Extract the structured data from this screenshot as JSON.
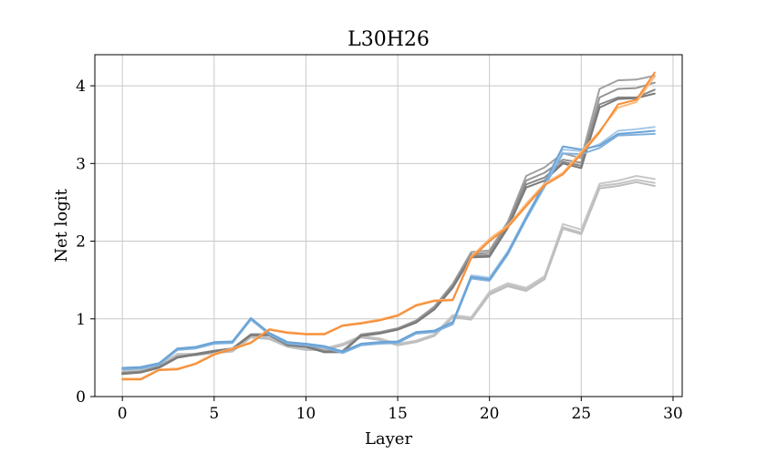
{
  "chart_data": {
    "type": "line",
    "title": "L30H26",
    "xlabel": "Layer",
    "ylabel": "Net logit",
    "xlim": [
      -1.5,
      30.5
    ],
    "ylim": [
      0,
      4.4
    ],
    "xticks": [
      0,
      5,
      10,
      15,
      20,
      25,
      30
    ],
    "yticks": [
      0,
      1,
      2,
      3,
      4
    ],
    "grid": true,
    "x": [
      0,
      1,
      2,
      3,
      4,
      5,
      6,
      7,
      8,
      9,
      10,
      11,
      12,
      13,
      14,
      15,
      16,
      17,
      18,
      19,
      20,
      21,
      22,
      23,
      24,
      25,
      26,
      27,
      28,
      29
    ],
    "series": [
      {
        "color": "#c8c8c8",
        "values": [
          0.33,
          0.34,
          0.4,
          0.55,
          0.55,
          0.58,
          0.6,
          0.78,
          0.76,
          0.66,
          0.62,
          0.62,
          0.68,
          0.78,
          0.75,
          0.68,
          0.72,
          0.8,
          1.05,
          1.02,
          1.35,
          1.46,
          1.4,
          1.55,
          2.22,
          2.15,
          2.74,
          2.78,
          2.84,
          2.8
        ]
      },
      {
        "color": "#c3c3c3",
        "values": [
          0.32,
          0.33,
          0.39,
          0.54,
          0.54,
          0.57,
          0.59,
          0.77,
          0.75,
          0.65,
          0.61,
          0.61,
          0.67,
          0.77,
          0.74,
          0.67,
          0.71,
          0.79,
          1.03,
          1.0,
          1.33,
          1.44,
          1.38,
          1.53,
          2.18,
          2.11,
          2.71,
          2.74,
          2.79,
          2.75
        ]
      },
      {
        "color": "#bdbdbd",
        "values": [
          0.31,
          0.32,
          0.38,
          0.53,
          0.53,
          0.56,
          0.58,
          0.76,
          0.74,
          0.64,
          0.6,
          0.6,
          0.66,
          0.76,
          0.73,
          0.66,
          0.7,
          0.78,
          1.02,
          0.99,
          1.31,
          1.42,
          1.36,
          1.51,
          2.16,
          2.09,
          2.68,
          2.71,
          2.76,
          2.71
        ]
      },
      {
        "color": "#a0a0a0",
        "values": [
          0.31,
          0.32,
          0.39,
          0.51,
          0.55,
          0.59,
          0.62,
          0.8,
          0.8,
          0.68,
          0.66,
          0.59,
          0.59,
          0.8,
          0.83,
          0.88,
          0.98,
          1.16,
          1.45,
          1.86,
          1.88,
          2.25,
          2.84,
          2.95,
          3.13,
          3.07,
          3.96,
          4.07,
          4.08,
          4.13
        ]
      },
      {
        "color": "#949494",
        "values": [
          0.3,
          0.32,
          0.38,
          0.51,
          0.55,
          0.59,
          0.62,
          0.8,
          0.8,
          0.67,
          0.65,
          0.58,
          0.58,
          0.79,
          0.82,
          0.87,
          0.97,
          1.14,
          1.43,
          1.83,
          1.85,
          2.22,
          2.78,
          2.88,
          3.05,
          3.01,
          3.85,
          3.96,
          3.97,
          4.04
        ]
      },
      {
        "color": "#888888",
        "values": [
          0.3,
          0.32,
          0.38,
          0.51,
          0.55,
          0.59,
          0.62,
          0.8,
          0.8,
          0.67,
          0.65,
          0.58,
          0.58,
          0.79,
          0.82,
          0.87,
          0.96,
          1.13,
          1.42,
          1.81,
          1.82,
          2.2,
          2.73,
          2.82,
          3.02,
          2.97,
          3.76,
          3.85,
          3.85,
          3.95
        ]
      },
      {
        "color": "#7a7a7a",
        "values": [
          0.29,
          0.31,
          0.37,
          0.5,
          0.54,
          0.58,
          0.61,
          0.79,
          0.79,
          0.66,
          0.64,
          0.57,
          0.57,
          0.78,
          0.81,
          0.86,
          0.95,
          1.12,
          1.4,
          1.79,
          1.8,
          2.17,
          2.69,
          2.78,
          3.0,
          2.94,
          3.72,
          3.83,
          3.84,
          3.9
        ]
      },
      {
        "color": "#a6c8e6",
        "values": [
          0.36,
          0.37,
          0.42,
          0.61,
          0.63,
          0.69,
          0.7,
          1.0,
          0.81,
          0.69,
          0.67,
          0.64,
          0.57,
          0.67,
          0.69,
          0.7,
          0.82,
          0.84,
          0.95,
          1.56,
          1.53,
          1.87,
          2.32,
          2.73,
          3.18,
          3.16,
          3.25,
          3.42,
          3.44,
          3.47
        ]
      },
      {
        "color": "#7fb0dc",
        "values": [
          0.35,
          0.36,
          0.41,
          0.6,
          0.62,
          0.68,
          0.69,
          0.99,
          0.8,
          0.68,
          0.66,
          0.63,
          0.56,
          0.66,
          0.68,
          0.69,
          0.81,
          0.83,
          0.93,
          1.52,
          1.49,
          1.83,
          2.28,
          2.7,
          3.13,
          3.12,
          3.2,
          3.36,
          3.37,
          3.38
        ]
      },
      {
        "color": "#6aa3d6",
        "values": [
          0.37,
          0.38,
          0.43,
          0.62,
          0.64,
          0.7,
          0.71,
          1.01,
          0.82,
          0.7,
          0.68,
          0.65,
          0.58,
          0.68,
          0.7,
          0.71,
          0.83,
          0.85,
          0.96,
          1.54,
          1.51,
          1.85,
          2.3,
          2.75,
          3.22,
          3.18,
          3.23,
          3.38,
          3.4,
          3.42
        ]
      },
      {
        "color": "#fdb97a",
        "values": [
          0.23,
          0.23,
          0.35,
          0.36,
          0.43,
          0.55,
          0.62,
          0.7,
          0.87,
          0.83,
          0.81,
          0.81,
          0.92,
          0.95,
          0.99,
          1.05,
          1.18,
          1.24,
          1.25,
          1.8,
          2.03,
          2.2,
          2.48,
          2.74,
          2.88,
          3.15,
          3.42,
          3.72,
          3.79,
          4.12
        ]
      },
      {
        "color": "#f58f3a",
        "values": [
          0.22,
          0.22,
          0.34,
          0.35,
          0.42,
          0.54,
          0.61,
          0.69,
          0.86,
          0.82,
          0.8,
          0.8,
          0.91,
          0.94,
          0.98,
          1.04,
          1.17,
          1.23,
          1.24,
          1.78,
          2.0,
          2.18,
          2.45,
          2.72,
          2.86,
          3.12,
          3.4,
          3.76,
          3.82,
          4.17
        ]
      }
    ]
  }
}
